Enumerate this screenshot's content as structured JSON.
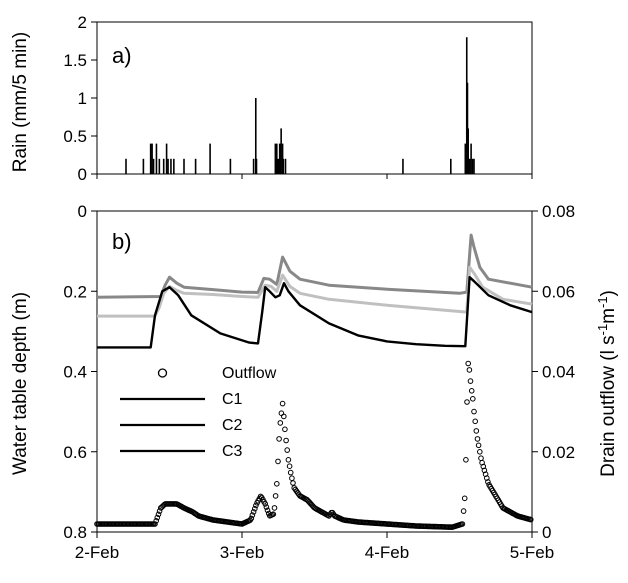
{
  "chart_data": [
    {
      "type": "bar",
      "panel_label": "a)",
      "ylabel": "Rain (mm/5 min)",
      "ylim": [
        0,
        2
      ],
      "yticks": [
        "0",
        "0.5",
        "1",
        "1.5",
        "2"
      ],
      "x_unit": "days",
      "xlim": [
        0,
        3
      ],
      "x": [
        0.2,
        0.32,
        0.37,
        0.38,
        0.39,
        0.41,
        0.43,
        0.46,
        0.48,
        0.49,
        0.51,
        0.53,
        0.6,
        0.68,
        0.78,
        0.92,
        1.08,
        1.095,
        1.1,
        1.23,
        1.24,
        1.25,
        1.26,
        1.27,
        1.28,
        1.285,
        1.3,
        2.11,
        2.44,
        2.54,
        2.55,
        2.555,
        2.56,
        2.57,
        2.58,
        2.59,
        2.6
      ],
      "values": [
        0.2,
        0.2,
        0.4,
        0.4,
        0.2,
        0.4,
        0.2,
        0.2,
        0.4,
        0.2,
        0.2,
        0.2,
        0.2,
        0.2,
        0.4,
        0.2,
        0.2,
        1.0,
        0.2,
        0.4,
        0.4,
        0.2,
        0.4,
        0.6,
        0.4,
        0.2,
        0.2,
        0.2,
        0.2,
        0.4,
        1.8,
        1.2,
        0.6,
        0.2,
        0.4,
        0.2,
        0.2
      ]
    },
    {
      "type": "line",
      "panel_label": "b)",
      "ylabel": "Water table depth (m)",
      "ylim": [
        0.8,
        0
      ],
      "yticks": [
        "0",
        "0.2",
        "0.4",
        "0.6",
        "0.8"
      ],
      "y2label": "Drain outflow (l s⁻¹m⁻¹)",
      "y2label_base": "Drain outflow (l s",
      "y2label_sup1": "-1",
      "y2label_mid": "m",
      "y2label_sup2": "-1",
      "y2label_end": ")",
      "y2lim": [
        0,
        0.08
      ],
      "y2ticks": [
        "0",
        "0.02",
        "0.04",
        "0.06",
        "0.08"
      ],
      "x_unit": "days",
      "xlim": [
        0,
        3
      ],
      "xticks": [
        "2-Feb",
        "3-Feb",
        "4-Feb",
        "5-Feb"
      ],
      "legend": {
        "position": "lower-left",
        "entries": [
          "Outflow",
          "C1",
          "C2",
          "C3"
        ]
      },
      "series": [
        {
          "name": "C1",
          "color": "#888888",
          "x": [
            0,
            0.44,
            0.47,
            0.5,
            0.55,
            0.6,
            0.8,
            1.0,
            1.11,
            1.15,
            1.19,
            1.24,
            1.28,
            1.33,
            1.4,
            1.6,
            2.0,
            2.5,
            2.55,
            2.58,
            2.6,
            2.64,
            2.7,
            3.0
          ],
          "y": [
            0.215,
            0.213,
            0.185,
            0.165,
            0.18,
            0.19,
            0.196,
            0.202,
            0.203,
            0.168,
            0.17,
            0.183,
            0.115,
            0.15,
            0.17,
            0.185,
            0.195,
            0.205,
            0.202,
            0.06,
            0.09,
            0.14,
            0.17,
            0.19
          ]
        },
        {
          "name": "C2",
          "color": "#c0c0c0",
          "x": [
            0,
            0.4,
            0.43,
            0.46,
            0.5,
            0.55,
            0.6,
            0.8,
            1.0,
            1.11,
            1.16,
            1.2,
            1.24,
            1.28,
            1.33,
            1.4,
            1.6,
            2.0,
            2.55,
            2.57,
            2.6,
            2.66,
            2.8,
            3.0
          ],
          "y": [
            0.262,
            0.262,
            0.24,
            0.205,
            0.188,
            0.198,
            0.205,
            0.208,
            0.213,
            0.215,
            0.185,
            0.188,
            0.2,
            0.16,
            0.188,
            0.205,
            0.22,
            0.235,
            0.252,
            0.14,
            0.155,
            0.19,
            0.22,
            0.232
          ]
        },
        {
          "name": "C3",
          "color": "#000000",
          "x": [
            0,
            0.22,
            0.37,
            0.4,
            0.45,
            0.5,
            0.56,
            0.65,
            0.85,
            1.05,
            1.11,
            1.14,
            1.16,
            1.19,
            1.23,
            1.26,
            1.29,
            1.32,
            1.4,
            1.6,
            1.8,
            2.0,
            2.2,
            2.4,
            2.54,
            2.57,
            2.6,
            2.7,
            2.85,
            3.0
          ],
          "y": [
            0.34,
            0.34,
            0.34,
            0.26,
            0.2,
            0.19,
            0.21,
            0.26,
            0.305,
            0.328,
            0.33,
            0.25,
            0.19,
            0.2,
            0.215,
            0.21,
            0.18,
            0.2,
            0.235,
            0.28,
            0.31,
            0.325,
            0.332,
            0.336,
            0.337,
            0.165,
            0.175,
            0.21,
            0.235,
            0.252
          ]
        },
        {
          "name": "Outflow",
          "type": "scatter",
          "axis": "y2",
          "marker": "open-circle",
          "x": [
            0,
            0.4,
            0.44,
            0.47,
            0.5,
            0.55,
            0.6,
            0.66,
            0.7,
            0.8,
            0.9,
            1.0,
            1.06,
            1.1,
            1.13,
            1.16,
            1.19,
            1.22,
            1.24,
            1.26,
            1.28,
            1.3,
            1.32,
            1.34,
            1.36,
            1.4,
            1.45,
            1.5,
            1.55,
            1.6,
            1.62,
            1.64,
            1.7,
            1.8,
            2.0,
            2.2,
            2.45,
            2.52,
            2.54,
            2.55,
            2.56,
            2.57,
            2.58,
            2.59,
            2.6,
            2.62,
            2.65,
            2.7,
            2.75,
            2.8,
            2.85,
            2.9,
            3.0
          ],
          "y": [
            0.002,
            0.002,
            0.006,
            0.007,
            0.007,
            0.007,
            0.006,
            0.005,
            0.004,
            0.003,
            0.0025,
            0.002,
            0.003,
            0.007,
            0.009,
            0.007,
            0.004,
            0.0045,
            0.012,
            0.026,
            0.032,
            0.024,
            0.018,
            0.014,
            0.011,
            0.009,
            0.008,
            0.006,
            0.005,
            0.004,
            0.005,
            0.004,
            0.003,
            0.0025,
            0.002,
            0.0015,
            0.0012,
            0.002,
            0.01,
            0.03,
            0.042,
            0.04,
            0.036,
            0.034,
            0.03,
            0.024,
            0.018,
            0.012,
            0.009,
            0.006,
            0.005,
            0.004,
            0.003
          ]
        }
      ]
    }
  ]
}
